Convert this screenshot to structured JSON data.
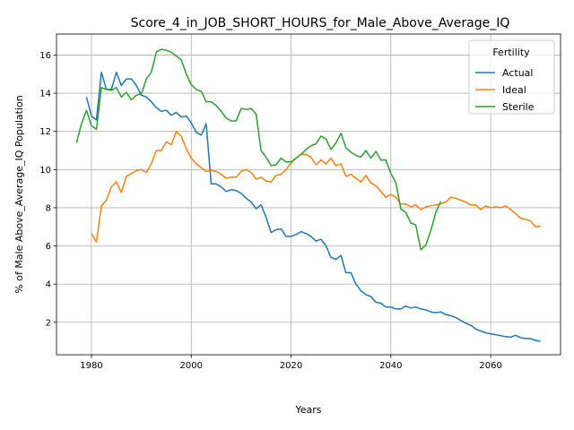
{
  "chart_data": {
    "type": "line",
    "title": "Score_4_in_JOB_SHORT_HOURS_for_Male_Above_Average_IQ",
    "xlabel": "Years",
    "ylabel": "% of Male Above_Average_IQ Population",
    "xlim": [
      1973,
      2074
    ],
    "ylim": [
      0.3,
      17.1
    ],
    "xticks": [
      1980,
      2000,
      2020,
      2040,
      2060
    ],
    "yticks": [
      2,
      4,
      6,
      8,
      10,
      12,
      14,
      16
    ],
    "grid": true,
    "legend": {
      "title": "Fertility",
      "placement": "top-right"
    },
    "series": [
      {
        "name": "Actual",
        "color": "#1f77b4",
        "points": [
          [
            1979,
            13.8
          ],
          [
            1980,
            12.8
          ],
          [
            1981,
            12.6
          ],
          [
            1982,
            15.1
          ],
          [
            1983,
            14.2
          ],
          [
            1984,
            14.2
          ],
          [
            1985,
            15.1
          ],
          [
            1986,
            14.4
          ],
          [
            1987,
            14.75
          ],
          [
            1988,
            14.75
          ],
          [
            1989,
            14.4
          ],
          [
            1990,
            13.9
          ],
          [
            1991,
            13.8
          ],
          [
            1992,
            13.55
          ],
          [
            1993,
            13.25
          ],
          [
            1994,
            13.05
          ],
          [
            1995,
            13.1
          ],
          [
            1996,
            12.85
          ],
          [
            1997,
            13.0
          ],
          [
            1998,
            12.75
          ],
          [
            1999,
            12.8
          ],
          [
            2000,
            12.45
          ],
          [
            2001,
            11.95
          ],
          [
            2002,
            11.8
          ],
          [
            2003,
            12.4
          ],
          [
            2004,
            9.25
          ],
          [
            2005,
            9.25
          ],
          [
            2006,
            9.1
          ],
          [
            2007,
            8.85
          ],
          [
            2008,
            8.95
          ],
          [
            2009,
            8.9
          ],
          [
            2010,
            8.75
          ],
          [
            2011,
            8.5
          ],
          [
            2012,
            8.3
          ],
          [
            2013,
            7.95
          ],
          [
            2014,
            8.15
          ],
          [
            2015,
            7.5
          ],
          [
            2016,
            6.7
          ],
          [
            2017,
            6.85
          ],
          [
            2018,
            6.9
          ],
          [
            2019,
            6.5
          ],
          [
            2020,
            6.5
          ],
          [
            2021,
            6.6
          ],
          [
            2022,
            6.75
          ],
          [
            2023,
            6.65
          ],
          [
            2024,
            6.5
          ],
          [
            2025,
            6.25
          ],
          [
            2026,
            6.35
          ],
          [
            2027,
            6.0
          ],
          [
            2028,
            5.4
          ],
          [
            2029,
            5.3
          ],
          [
            2030,
            5.5
          ],
          [
            2031,
            4.6
          ],
          [
            2032,
            4.6
          ],
          [
            2033,
            4.0
          ],
          [
            2034,
            3.65
          ],
          [
            2035,
            3.45
          ],
          [
            2036,
            3.35
          ],
          [
            2037,
            3.05
          ],
          [
            2038,
            3.0
          ],
          [
            2039,
            2.8
          ],
          [
            2040,
            2.8
          ],
          [
            2041,
            2.7
          ],
          [
            2042,
            2.7
          ],
          [
            2043,
            2.85
          ],
          [
            2044,
            2.75
          ],
          [
            2045,
            2.8
          ],
          [
            2046,
            2.7
          ],
          [
            2047,
            2.65
          ],
          [
            2048,
            2.55
          ],
          [
            2049,
            2.5
          ],
          [
            2050,
            2.55
          ],
          [
            2051,
            2.4
          ],
          [
            2052,
            2.35
          ],
          [
            2053,
            2.25
          ],
          [
            2054,
            2.1
          ],
          [
            2055,
            1.95
          ],
          [
            2056,
            1.85
          ],
          [
            2057,
            1.65
          ],
          [
            2058,
            1.55
          ],
          [
            2059,
            1.45
          ],
          [
            2060,
            1.4
          ],
          [
            2061,
            1.35
          ],
          [
            2062,
            1.3
          ],
          [
            2063,
            1.25
          ],
          [
            2064,
            1.22
          ],
          [
            2065,
            1.32
          ],
          [
            2066,
            1.2
          ],
          [
            2067,
            1.15
          ],
          [
            2068,
            1.15
          ],
          [
            2069,
            1.05
          ],
          [
            2070,
            1.0
          ]
        ]
      },
      {
        "name": "Ideal",
        "color": "#ff7f0e",
        "points": [
          [
            1980,
            6.65
          ],
          [
            1981,
            6.2
          ],
          [
            1982,
            8.1
          ],
          [
            1983,
            8.4
          ],
          [
            1984,
            9.1
          ],
          [
            1985,
            9.35
          ],
          [
            1986,
            8.8
          ],
          [
            1987,
            9.65
          ],
          [
            1988,
            9.8
          ],
          [
            1989,
            9.95
          ],
          [
            1990,
            10.0
          ],
          [
            1991,
            9.85
          ],
          [
            1992,
            10.3
          ],
          [
            1993,
            11.0
          ],
          [
            1994,
            11.0
          ],
          [
            1995,
            11.45
          ],
          [
            1996,
            11.3
          ],
          [
            1997,
            12.0
          ],
          [
            1998,
            11.75
          ],
          [
            1999,
            11.1
          ],
          [
            2000,
            10.6
          ],
          [
            2001,
            10.3
          ],
          [
            2002,
            10.1
          ],
          [
            2003,
            9.9
          ],
          [
            2004,
            9.95
          ],
          [
            2005,
            9.9
          ],
          [
            2006,
            9.75
          ],
          [
            2007,
            9.55
          ],
          [
            2008,
            9.6
          ],
          [
            2009,
            9.6
          ],
          [
            2010,
            9.9
          ],
          [
            2011,
            10.0
          ],
          [
            2012,
            9.85
          ],
          [
            2013,
            9.5
          ],
          [
            2014,
            9.6
          ],
          [
            2015,
            9.4
          ],
          [
            2016,
            9.35
          ],
          [
            2017,
            9.7
          ],
          [
            2018,
            9.75
          ],
          [
            2019,
            10.0
          ],
          [
            2020,
            10.35
          ],
          [
            2021,
            10.6
          ],
          [
            2022,
            10.8
          ],
          [
            2023,
            10.8
          ],
          [
            2024,
            10.65
          ],
          [
            2025,
            10.25
          ],
          [
            2026,
            10.5
          ],
          [
            2027,
            10.3
          ],
          [
            2028,
            10.6
          ],
          [
            2029,
            10.2
          ],
          [
            2030,
            10.3
          ],
          [
            2031,
            9.65
          ],
          [
            2032,
            9.75
          ],
          [
            2033,
            9.55
          ],
          [
            2034,
            9.35
          ],
          [
            2035,
            9.7
          ],
          [
            2036,
            9.3
          ],
          [
            2037,
            9.15
          ],
          [
            2038,
            8.85
          ],
          [
            2039,
            8.55
          ],
          [
            2040,
            8.7
          ],
          [
            2041,
            8.55
          ],
          [
            2042,
            8.2
          ],
          [
            2043,
            8.2
          ],
          [
            2044,
            8.05
          ],
          [
            2045,
            8.15
          ],
          [
            2046,
            7.9
          ],
          [
            2047,
            8.05
          ],
          [
            2048,
            8.1
          ],
          [
            2049,
            8.15
          ],
          [
            2050,
            8.2
          ],
          [
            2051,
            8.3
          ],
          [
            2052,
            8.55
          ],
          [
            2053,
            8.5
          ],
          [
            2054,
            8.4
          ],
          [
            2055,
            8.3
          ],
          [
            2056,
            8.15
          ],
          [
            2057,
            8.15
          ],
          [
            2058,
            7.9
          ],
          [
            2059,
            8.1
          ],
          [
            2060,
            8.0
          ],
          [
            2061,
            8.05
          ],
          [
            2062,
            8.0
          ],
          [
            2063,
            8.1
          ],
          [
            2064,
            7.9
          ],
          [
            2065,
            7.7
          ],
          [
            2066,
            7.45
          ],
          [
            2067,
            7.4
          ],
          [
            2068,
            7.3
          ],
          [
            2069,
            7.0
          ],
          [
            2070,
            7.05
          ]
        ]
      },
      {
        "name": "Sterile",
        "color": "#2ca02c",
        "points": [
          [
            1977,
            11.4
          ],
          [
            1978,
            12.4
          ],
          [
            1979,
            13.1
          ],
          [
            1980,
            12.3
          ],
          [
            1981,
            12.1
          ],
          [
            1982,
            14.3
          ],
          [
            1983,
            14.2
          ],
          [
            1984,
            14.15
          ],
          [
            1985,
            14.3
          ],
          [
            1986,
            13.8
          ],
          [
            1987,
            14.05
          ],
          [
            1988,
            13.65
          ],
          [
            1989,
            13.9
          ],
          [
            1990,
            13.95
          ],
          [
            1991,
            14.75
          ],
          [
            1992,
            15.1
          ],
          [
            1993,
            16.15
          ],
          [
            1994,
            16.3
          ],
          [
            1995,
            16.25
          ],
          [
            1996,
            16.15
          ],
          [
            1997,
            15.95
          ],
          [
            1998,
            15.75
          ],
          [
            1999,
            15.0
          ],
          [
            2000,
            14.45
          ],
          [
            2001,
            14.2
          ],
          [
            2002,
            14.1
          ],
          [
            2003,
            13.55
          ],
          [
            2004,
            13.55
          ],
          [
            2005,
            13.35
          ],
          [
            2006,
            13.05
          ],
          [
            2007,
            12.7
          ],
          [
            2008,
            12.55
          ],
          [
            2009,
            12.55
          ],
          [
            2010,
            13.2
          ],
          [
            2011,
            13.15
          ],
          [
            2012,
            13.2
          ],
          [
            2013,
            12.9
          ],
          [
            2014,
            11.0
          ],
          [
            2015,
            10.65
          ],
          [
            2016,
            10.2
          ],
          [
            2017,
            10.25
          ],
          [
            2018,
            10.6
          ],
          [
            2019,
            10.4
          ],
          [
            2020,
            10.4
          ],
          [
            2021,
            10.6
          ],
          [
            2022,
            10.8
          ],
          [
            2023,
            11.05
          ],
          [
            2024,
            11.25
          ],
          [
            2025,
            11.35
          ],
          [
            2026,
            11.75
          ],
          [
            2027,
            11.6
          ],
          [
            2028,
            11.05
          ],
          [
            2029,
            11.4
          ],
          [
            2030,
            11.9
          ],
          [
            2031,
            11.15
          ],
          [
            2032,
            10.9
          ],
          [
            2033,
            10.75
          ],
          [
            2034,
            10.65
          ],
          [
            2035,
            11.0
          ],
          [
            2036,
            10.6
          ],
          [
            2037,
            10.95
          ],
          [
            2038,
            10.5
          ],
          [
            2039,
            10.5
          ],
          [
            2040,
            9.8
          ],
          [
            2041,
            9.3
          ],
          [
            2042,
            7.95
          ],
          [
            2043,
            7.75
          ],
          [
            2044,
            7.2
          ],
          [
            2045,
            7.1
          ],
          [
            2046,
            5.8
          ],
          [
            2047,
            6.05
          ],
          [
            2048,
            6.8
          ],
          [
            2049,
            7.75
          ],
          [
            2050,
            8.35
          ]
        ]
      }
    ]
  }
}
